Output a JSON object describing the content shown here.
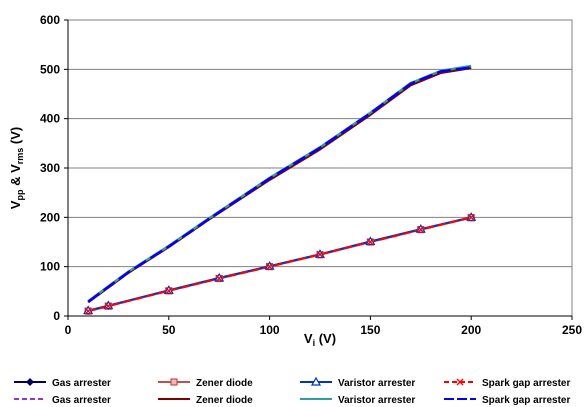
{
  "chart_data": {
    "type": "line",
    "xlim": [
      0,
      250
    ],
    "ylim": [
      0,
      600
    ],
    "x_ticks": [
      "0",
      "50",
      "100",
      "150",
      "200",
      "250"
    ],
    "y_ticks": [
      "0",
      "100",
      "200",
      "300",
      "400",
      "500",
      "600"
    ],
    "xlabel": {
      "base": "V",
      "sub": "i",
      "suffix": " (V)"
    },
    "ylabel": {
      "base1": "V",
      "sub1": "pp",
      "mid": " & V",
      "sub2": "rms",
      "suffix": " (V)"
    },
    "grid": "horizontal",
    "legend_position": "bottom",
    "series": [
      {
        "name": "Gas arrester",
        "color": "#000066",
        "dash": "solid",
        "marker": "diamond",
        "group": "rms",
        "x": [
          10,
          20,
          50,
          75,
          100,
          125,
          150,
          175,
          200
        ],
        "y": [
          10,
          20,
          52,
          77,
          101,
          125,
          151,
          176,
          200
        ]
      },
      {
        "name": "Zener diode",
        "color": "#c0504d",
        "dash": "solid",
        "marker": "square",
        "group": "rms",
        "x": [
          10,
          20,
          50,
          75,
          100,
          125,
          150,
          175,
          200
        ],
        "y": [
          10,
          20,
          51,
          76,
          100,
          124,
          150,
          175,
          199
        ]
      },
      {
        "name": "Varistor arrester",
        "color": "#0033cc",
        "dash": "solid",
        "marker": "triangle",
        "group": "rms",
        "x": [
          10,
          20,
          50,
          75,
          100,
          125,
          150,
          175,
          200
        ],
        "y": [
          11,
          21,
          52,
          77,
          101,
          125,
          151,
          176,
          200
        ]
      },
      {
        "name": "Spark gap arrester",
        "color": "#ff0000",
        "dash": "dash",
        "marker": "x",
        "group": "rms",
        "x": [
          10,
          20,
          50,
          75,
          100,
          125,
          150,
          175,
          200
        ],
        "y": [
          10,
          20,
          51,
          76,
          100,
          125,
          150,
          175,
          200
        ]
      },
      {
        "name": "Gas arrester",
        "color": "#9933cc",
        "dash": "dash",
        "marker": "none",
        "group": "pp",
        "x": [
          10,
          20,
          30,
          50,
          70,
          100,
          125,
          150,
          170,
          185,
          200
        ],
        "y": [
          28,
          58,
          88,
          140,
          196,
          278,
          340,
          410,
          470,
          495,
          505
        ]
      },
      {
        "name": "Zener diode",
        "color": "#800000",
        "dash": "solid",
        "marker": "none",
        "group": "pp",
        "x": [
          10,
          20,
          30,
          50,
          70,
          100,
          125,
          150,
          170,
          185,
          200
        ],
        "y": [
          28,
          58,
          88,
          140,
          196,
          276,
          338,
          408,
          468,
          493,
          503
        ]
      },
      {
        "name": "Varistor arrester",
        "color": "#2e9e9e",
        "dash": "solid",
        "marker": "none",
        "group": "pp",
        "x": [
          10,
          20,
          30,
          50,
          70,
          100,
          125,
          150,
          170,
          185,
          200
        ],
        "y": [
          30,
          60,
          90,
          142,
          198,
          280,
          342,
          412,
          472,
          497,
          507
        ]
      },
      {
        "name": "Spark gap arrester",
        "color": "#0000ff",
        "dash": "longdash",
        "marker": "none",
        "group": "pp",
        "x": [
          10,
          20,
          30,
          50,
          70,
          100,
          125,
          150,
          170,
          185,
          200
        ],
        "y": [
          29,
          59,
          89,
          141,
          197,
          279,
          341,
          411,
          471,
          496,
          504
        ]
      }
    ]
  }
}
